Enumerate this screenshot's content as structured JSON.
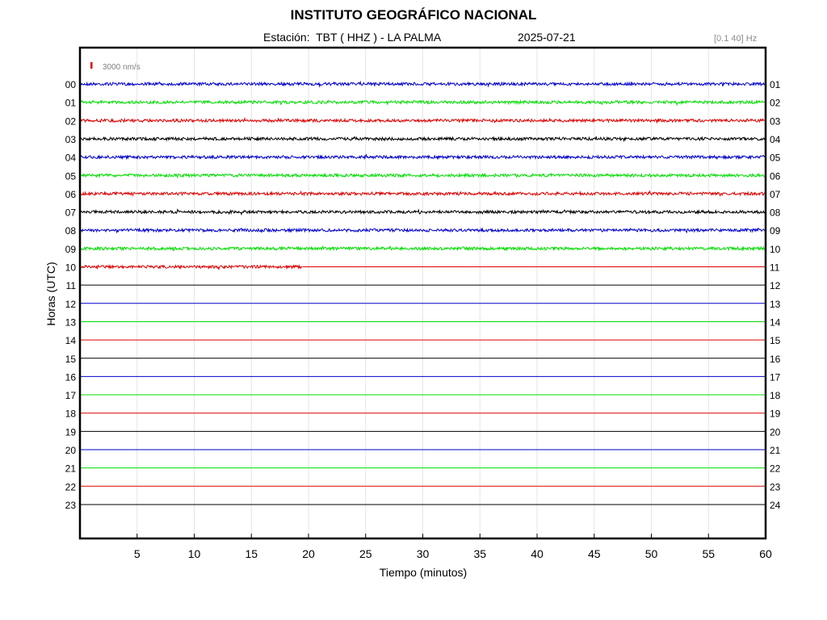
{
  "header": {
    "title": "INSTITUTO GEOGRÁFICO NACIONAL",
    "station": "Estación:  TBT ( HHZ ) - LA PALMA",
    "date": "2025-07-21",
    "filter": "[0.1 40] Hz"
  },
  "chart_data": {
    "type": "line",
    "title": "INSTITUTO GEOGRÁFICO NACIONAL",
    "xlabel": "Tiempo (minutos)",
    "ylabel": "Horas (UTC)",
    "xlim": [
      0,
      60
    ],
    "x_ticks": [
      "5",
      "10",
      "15",
      "20",
      "25",
      "30",
      "35",
      "40",
      "45",
      "50",
      "55",
      "60"
    ],
    "scale_label": "3000 nm/s",
    "scale_color": "#e00000",
    "grid": "vertical",
    "colors": [
      "#0000cc",
      "#00dd00",
      "#dd0000",
      "#000000"
    ],
    "left_labels": [
      "00",
      "01",
      "02",
      "03",
      "04",
      "05",
      "06",
      "07",
      "08",
      "09",
      "10",
      "11",
      "12",
      "13",
      "14",
      "15",
      "16",
      "17",
      "18",
      "19",
      "20",
      "21",
      "22",
      "23"
    ],
    "right_labels": [
      "01",
      "02",
      "03",
      "04",
      "05",
      "06",
      "07",
      "08",
      "09",
      "10",
      "11",
      "12",
      "13",
      "14",
      "15",
      "16",
      "17",
      "18",
      "19",
      "20",
      "21",
      "22",
      "23",
      "24"
    ],
    "traces": [
      {
        "hour": "00",
        "color": "#0000cc",
        "recorded_minutes": 60
      },
      {
        "hour": "01",
        "color": "#00dd00",
        "recorded_minutes": 60
      },
      {
        "hour": "02",
        "color": "#dd0000",
        "recorded_minutes": 60
      },
      {
        "hour": "03",
        "color": "#000000",
        "recorded_minutes": 60
      },
      {
        "hour": "04",
        "color": "#0000cc",
        "recorded_minutes": 60
      },
      {
        "hour": "05",
        "color": "#00dd00",
        "recorded_minutes": 60
      },
      {
        "hour": "06",
        "color": "#dd0000",
        "recorded_minutes": 60
      },
      {
        "hour": "07",
        "color": "#000000",
        "recorded_minutes": 60
      },
      {
        "hour": "08",
        "color": "#0000cc",
        "recorded_minutes": 60
      },
      {
        "hour": "09",
        "color": "#00dd00",
        "recorded_minutes": 60
      },
      {
        "hour": "10",
        "color": "#dd0000",
        "recorded_minutes": 19.5
      },
      {
        "hour": "11",
        "color": "#000000",
        "recorded_minutes": 0
      },
      {
        "hour": "12",
        "color": "#0000cc",
        "recorded_minutes": 0
      },
      {
        "hour": "13",
        "color": "#00dd00",
        "recorded_minutes": 0
      },
      {
        "hour": "14",
        "color": "#dd0000",
        "recorded_minutes": 0
      },
      {
        "hour": "15",
        "color": "#000000",
        "recorded_minutes": 0
      },
      {
        "hour": "16",
        "color": "#0000cc",
        "recorded_minutes": 0
      },
      {
        "hour": "17",
        "color": "#00dd00",
        "recorded_minutes": 0
      },
      {
        "hour": "18",
        "color": "#dd0000",
        "recorded_minutes": 0
      },
      {
        "hour": "19",
        "color": "#000000",
        "recorded_minutes": 0
      },
      {
        "hour": "20",
        "color": "#0000cc",
        "recorded_minutes": 0
      },
      {
        "hour": "21",
        "color": "#00dd00",
        "recorded_minutes": 0
      },
      {
        "hour": "22",
        "color": "#dd0000",
        "recorded_minutes": 0
      },
      {
        "hour": "23",
        "color": "#000000",
        "recorded_minutes": 0
      }
    ]
  }
}
